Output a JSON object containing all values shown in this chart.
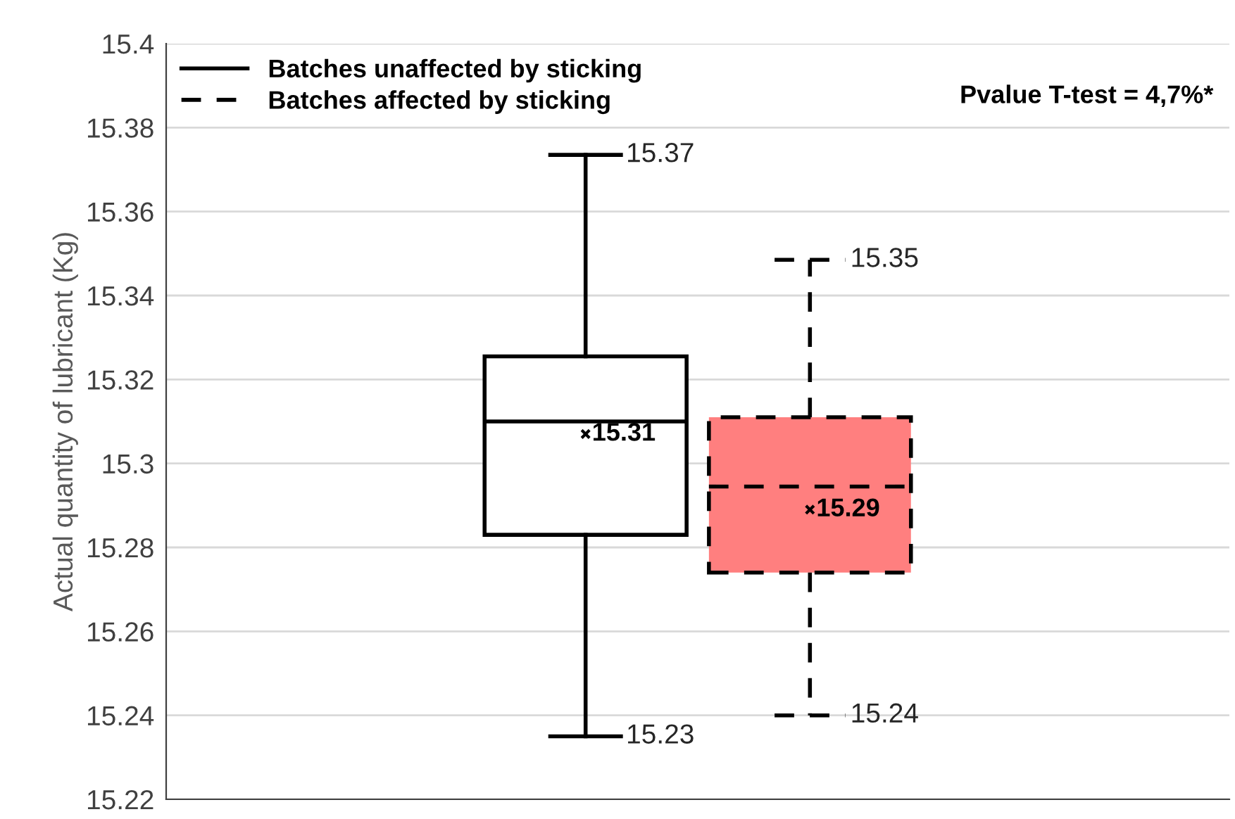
{
  "chart_data": {
    "type": "box",
    "ylabel": "Actual quantity of lubricant (Kg)",
    "categories": [
      null
    ],
    "series": [
      {
        "name": "Batches unaffected by sticking",
        "color": "#ffffff",
        "line_style": "solid",
        "boxes": [
          {
            "low": 15.235,
            "q1": 15.283,
            "median": 15.31,
            "q3": 15.3255,
            "high": 15.3735,
            "mean": 15.307
          }
        ]
      },
      {
        "name": "Batches affected by sticking",
        "color": "#ff7f7f",
        "line_style": "dashed",
        "boxes": [
          {
            "low": 15.24,
            "q1": 15.274,
            "median": 15.2945,
            "q3": 15.311,
            "high": 15.3485,
            "mean": 15.289
          }
        ]
      }
    ],
    "ylim": [
      15.22,
      15.4
    ],
    "yticks": [
      15.22,
      15.24,
      15.26,
      15.28,
      15.3,
      15.32,
      15.34,
      15.36,
      15.38,
      15.4
    ],
    "grid": "y",
    "legend": "top left",
    "marker": "cross",
    "annotations": [
      "Pvalue T-test = 4,7%*",
      "15.37",
      "15.23",
      "15.31",
      "15.35",
      "15.24",
      "15.29"
    ]
  }
}
